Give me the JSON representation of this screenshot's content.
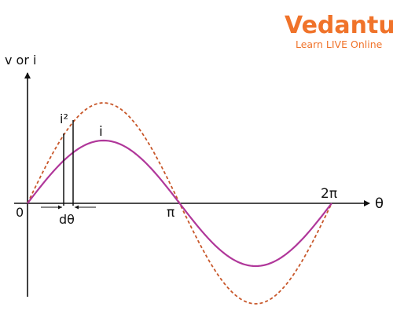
{
  "logo": {
    "brand": "Vedantu",
    "tagline": "Learn LIVE Online",
    "color": "#f0732a"
  },
  "diagram": {
    "y_axis_label": "v or i",
    "x_axis_label": "θ",
    "origin_label": "0",
    "pi_label": "π",
    "two_pi_label": "2π",
    "d_theta_label": "dθ",
    "i_squared_label": "i²",
    "i_label": "i",
    "colors": {
      "current_curve": "#b0379a",
      "squared_curve": "#c8572a",
      "axis": "#111111"
    },
    "x_range": [
      0,
      6.2832
    ],
    "current_amplitude": 1.0,
    "squared_amplitude": 1.6
  }
}
